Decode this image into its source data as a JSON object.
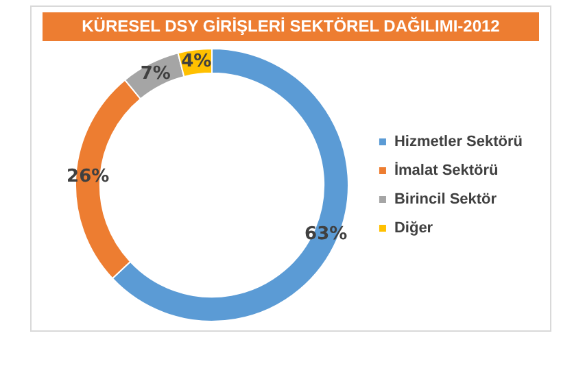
{
  "chart_data": {
    "type": "donut",
    "title": "KÜRESEL DSY GİRİŞLERİ SEKTÖREL DAĞILIMI-2012",
    "categories": [
      "Hizmetler Sektörü",
      "İmalat Sektörü",
      "Birincil Sektör",
      "Diğer"
    ],
    "values": [
      63,
      26,
      7,
      4
    ],
    "colors": [
      "#5b9bd5",
      "#ed7d31",
      "#a5a5a5",
      "#ffc000"
    ],
    "value_labels": [
      "63%",
      "26%",
      "7%",
      "4%"
    ],
    "legend": "right"
  }
}
